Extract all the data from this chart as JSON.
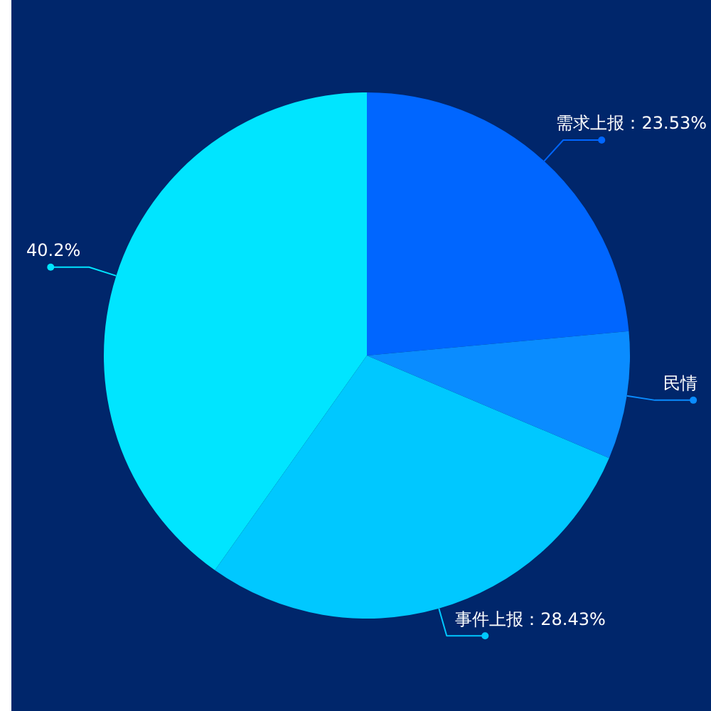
{
  "chart_data": {
    "type": "pie",
    "categories": [
      "需求上报：23.53%",
      "民情",
      "事件上报：28.43%",
      null
    ],
    "values": [
      23.53,
      7.84,
      28.43,
      40.2
    ],
    "colors": [
      "#0066ff",
      "#0a8cff",
      "#00c8ff",
      "#00e5ff"
    ],
    "value_labels": [
      null,
      null,
      null,
      "40.2%"
    ]
  }
}
